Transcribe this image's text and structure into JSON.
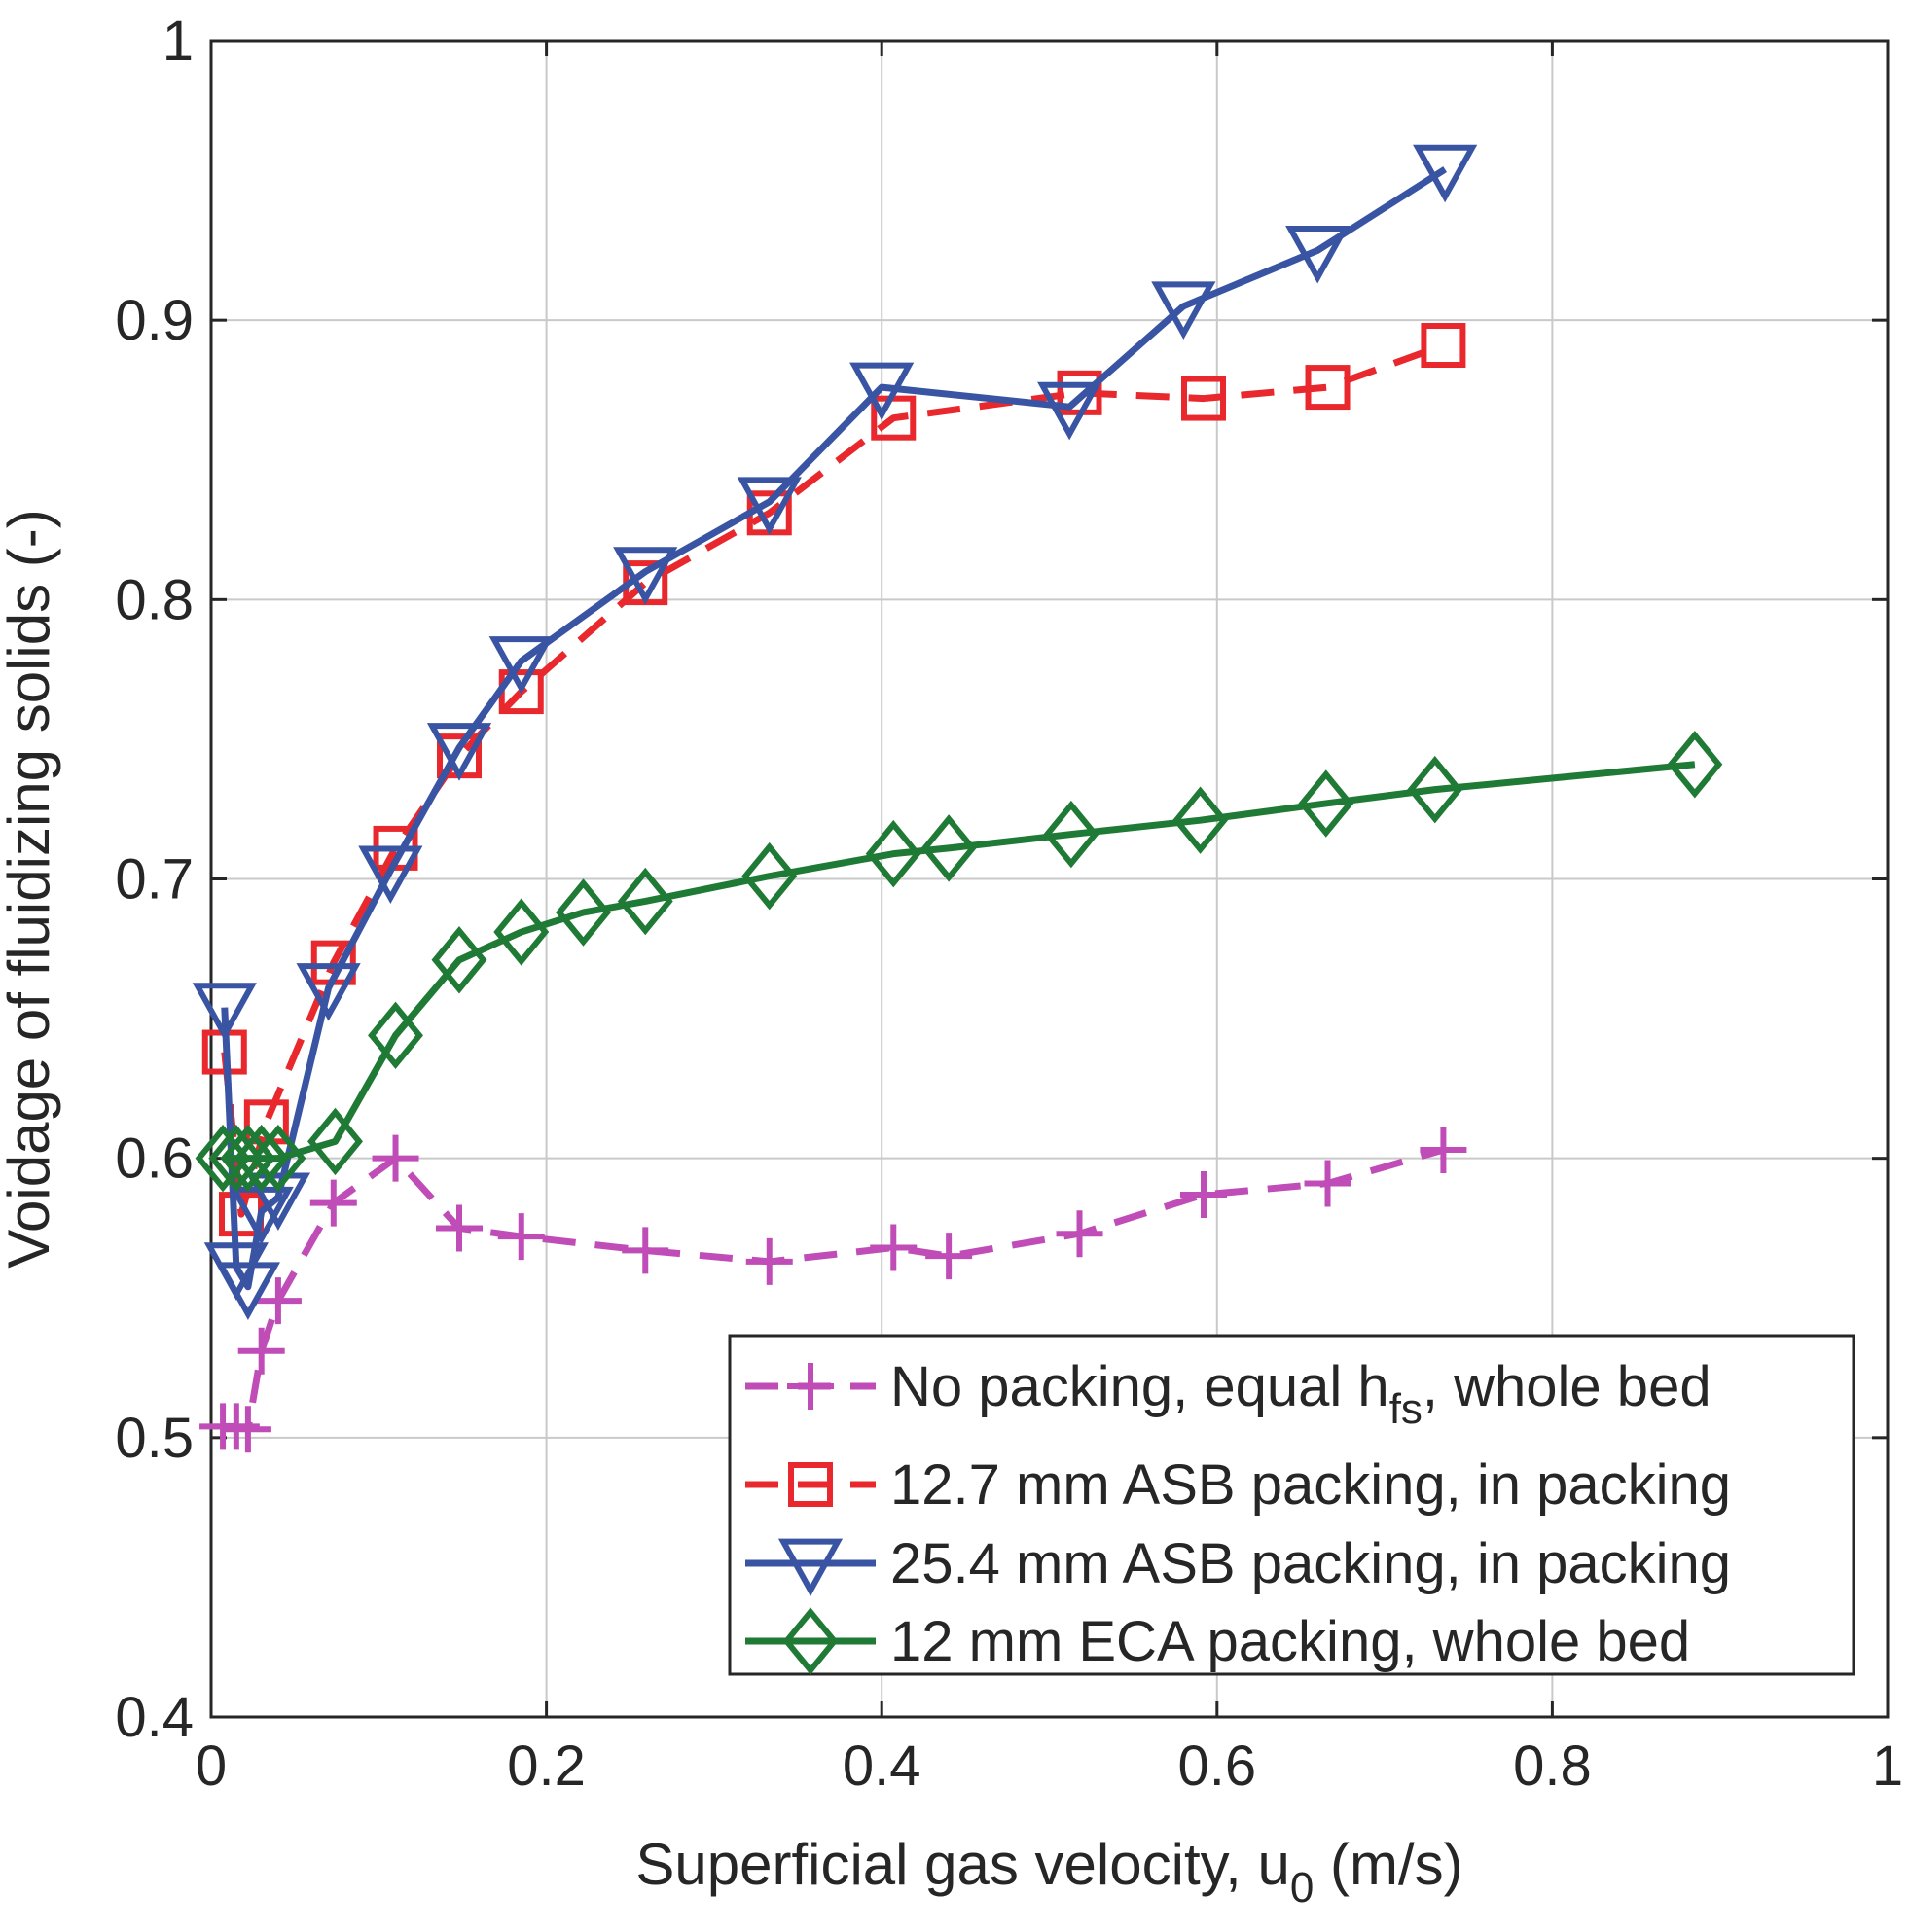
{
  "chart_data": {
    "type": "line",
    "title": "",
    "xlabel": "Superficial gas velocity, u",
    "xlabel_sub": "0",
    "xlabel_unit": " (m/s)",
    "ylabel": "Voidage of fluidizing solids (-)",
    "xlim": [
      0,
      1
    ],
    "ylim": [
      0.4,
      1
    ],
    "xticks": [
      0,
      0.2,
      0.4,
      0.6,
      0.8,
      1
    ],
    "xtick_labels": [
      "0",
      "0.2",
      "0.4",
      "0.6",
      "0.8",
      "1"
    ],
    "yticks": [
      0.4,
      0.5,
      0.6,
      0.7,
      0.8,
      0.9,
      1
    ],
    "ytick_labels": [
      "0.4",
      "0.5",
      "0.6",
      "0.7",
      "0.8",
      "0.9",
      "1"
    ],
    "grid": true,
    "legend_position": "bottom-right",
    "series": [
      {
        "name": "No packing, equal h_fs, whole bed",
        "legend_main": "No packing, equal h",
        "legend_sub": "fs",
        "legend_tail": ", whole bed",
        "color": "#C04CB8",
        "line_style": "dashed",
        "marker": "plus",
        "x": [
          0.007,
          0.015,
          0.022,
          0.03,
          0.04,
          0.073,
          0.11,
          0.148,
          0.185,
          0.259,
          0.333,
          0.407,
          0.44,
          0.518,
          0.592,
          0.666,
          0.735
        ],
        "y": [
          0.504,
          0.504,
          0.503,
          0.531,
          0.549,
          0.584,
          0.6,
          0.575,
          0.572,
          0.567,
          0.563,
          0.568,
          0.565,
          0.573,
          0.587,
          0.591,
          0.603
        ]
      },
      {
        "name": "12.7 mm ASB packing, in packing",
        "legend_main": "12.7 mm ASB packing, in packing",
        "legend_sub": "",
        "legend_tail": "",
        "color": "#E8282C",
        "line_style": "dashed",
        "marker": "square",
        "x": [
          0.008,
          0.018,
          0.033,
          0.073,
          0.11,
          0.148,
          0.185,
          0.259,
          0.333,
          0.407,
          0.518,
          0.592,
          0.666,
          0.735
        ],
        "y": [
          0.638,
          0.58,
          0.613,
          0.67,
          0.711,
          0.744,
          0.767,
          0.806,
          0.831,
          0.865,
          0.874,
          0.872,
          0.876,
          0.891
        ]
      },
      {
        "name": "25.4 mm ASB packing, in packing",
        "legend_main": "25.4 mm ASB packing, in packing",
        "legend_sub": "",
        "legend_tail": "",
        "color": "#3A54A4",
        "line_style": "solid",
        "marker": "triangle-down",
        "x": [
          0.008,
          0.015,
          0.022,
          0.03,
          0.04,
          0.07,
          0.107,
          0.148,
          0.185,
          0.259,
          0.333,
          0.4,
          0.512,
          0.58,
          0.66,
          0.736
        ],
        "y": [
          0.654,
          0.561,
          0.554,
          0.581,
          0.586,
          0.661,
          0.703,
          0.747,
          0.778,
          0.81,
          0.835,
          0.876,
          0.869,
          0.905,
          0.925,
          0.954
        ]
      },
      {
        "name": "12 mm ECA packing, whole bed",
        "legend_main": "12 mm ECA packing, whole bed",
        "legend_sub": "",
        "legend_tail": "",
        "color": "#1F7A35",
        "line_style": "solid",
        "marker": "diamond",
        "x": [
          0.007,
          0.015,
          0.022,
          0.03,
          0.04,
          0.074,
          0.11,
          0.148,
          0.185,
          0.222,
          0.259,
          0.333,
          0.407,
          0.44,
          0.513,
          0.59,
          0.665,
          0.73,
          0.885
        ],
        "y": [
          0.6,
          0.6,
          0.6,
          0.6,
          0.6,
          0.606,
          0.644,
          0.671,
          0.681,
          0.688,
          0.692,
          0.701,
          0.709,
          0.711,
          0.716,
          0.721,
          0.727,
          0.732,
          0.741
        ]
      }
    ]
  }
}
